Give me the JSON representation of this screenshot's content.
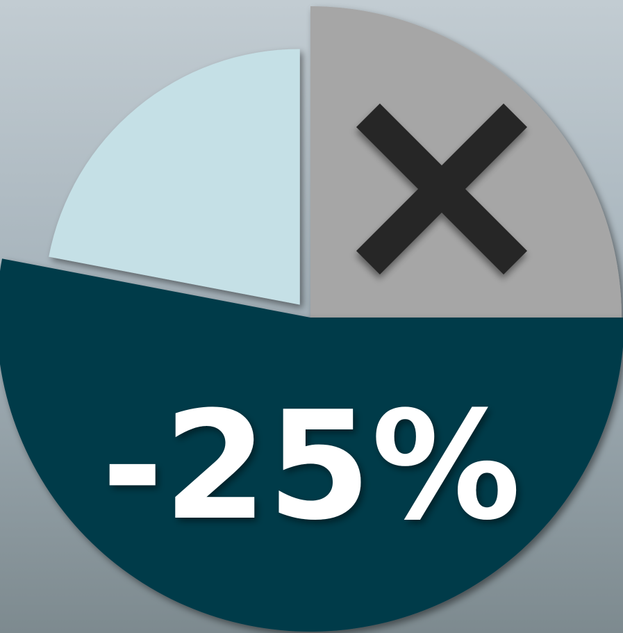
{
  "chart_data": {
    "type": "pie",
    "values": [
      25,
      53,
      22
    ],
    "colors": [
      "#a6a6a6",
      "#013a4a",
      "#c5e0e6"
    ],
    "annotation": "-25%"
  }
}
